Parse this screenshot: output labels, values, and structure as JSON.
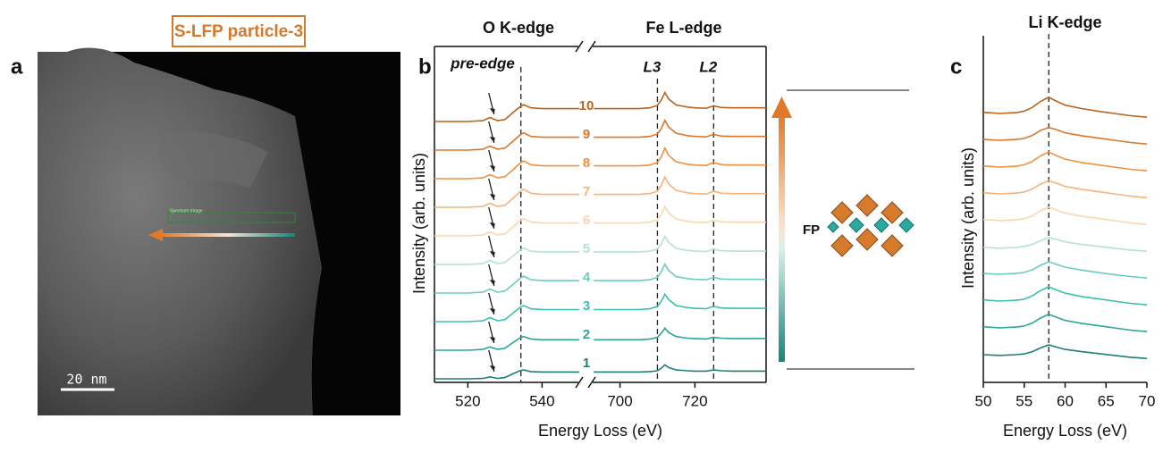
{
  "figure": {
    "particle_title": "S-LFP particle-3",
    "panel_labels": [
      "a",
      "b",
      "c"
    ],
    "scale_bar": "20 nm",
    "roi_label": "Spectrum Image",
    "structure_label": "FP"
  },
  "chart_data": [
    {
      "type": "line",
      "headers": [
        "O K-edge",
        "Fe L-edge"
      ],
      "x_label": "Energy Loss (eV)",
      "y_label": "Intensity (arb. units)",
      "xlim": [
        [
          511,
          550.5
        ],
        [
          692,
          739
        ]
      ],
      "xticks": [
        520,
        540,
        700,
        720
      ],
      "markers": [
        {
          "x": 534.3
        },
        {
          "x": 710,
          "label": "L3"
        },
        {
          "x": 725,
          "label": "L2"
        }
      ],
      "pre_edge_label": "pre-edge",
      "x": [
        511,
        520,
        524,
        526,
        528,
        530,
        532,
        534,
        535,
        537,
        540,
        545,
        550,
        693,
        700,
        705,
        708,
        710,
        711,
        712,
        713,
        715,
        718,
        720,
        723,
        725,
        727,
        730,
        735,
        739
      ],
      "series": [
        {
          "name": "1",
          "color": "#1f7f74",
          "values": [
            0,
            0,
            0.01,
            0.05,
            0.01,
            0.03,
            0.12,
            0.2,
            0.22,
            0.18,
            0.17,
            0.17,
            0.17,
            0.17,
            0.17,
            0.17,
            0.18,
            0.2,
            0.26,
            0.35,
            0.28,
            0.22,
            0.2,
            0.19,
            0.19,
            0.22,
            0.2,
            0.19,
            0.19,
            0.19
          ]
        },
        {
          "name": "2",
          "color": "#2aa597",
          "values": [
            0,
            0,
            0.02,
            0.08,
            0.02,
            0.05,
            0.18,
            0.3,
            0.34,
            0.28,
            0.26,
            0.26,
            0.26,
            0.26,
            0.26,
            0.26,
            0.28,
            0.32,
            0.42,
            0.55,
            0.44,
            0.34,
            0.3,
            0.29,
            0.28,
            0.32,
            0.3,
            0.29,
            0.29,
            0.29
          ]
        },
        {
          "name": "3",
          "color": "#3bbfb0",
          "values": [
            0,
            0,
            0.02,
            0.1,
            0.02,
            0.05,
            0.2,
            0.35,
            0.4,
            0.32,
            0.3,
            0.3,
            0.3,
            0.3,
            0.3,
            0.3,
            0.32,
            0.38,
            0.5,
            0.68,
            0.55,
            0.4,
            0.35,
            0.33,
            0.32,
            0.38,
            0.34,
            0.33,
            0.33,
            0.33
          ]
        },
        {
          "name": "4",
          "color": "#6cccc0",
          "values": [
            0,
            0,
            0.02,
            0.1,
            0.02,
            0.05,
            0.2,
            0.36,
            0.42,
            0.33,
            0.31,
            0.31,
            0.31,
            0.31,
            0.31,
            0.31,
            0.33,
            0.39,
            0.52,
            0.72,
            0.56,
            0.41,
            0.36,
            0.34,
            0.33,
            0.39,
            0.35,
            0.34,
            0.34,
            0.34
          ]
        },
        {
          "name": "5",
          "color": "#b4e1d8",
          "values": [
            0,
            0,
            0.02,
            0.1,
            0.02,
            0.05,
            0.2,
            0.35,
            0.41,
            0.33,
            0.31,
            0.31,
            0.31,
            0.31,
            0.31,
            0.31,
            0.33,
            0.38,
            0.5,
            0.7,
            0.55,
            0.4,
            0.35,
            0.33,
            0.32,
            0.38,
            0.34,
            0.33,
            0.33,
            0.33
          ]
        },
        {
          "name": "6",
          "color": "#f8d6b0",
          "values": [
            0,
            0,
            0.02,
            0.1,
            0.02,
            0.05,
            0.21,
            0.37,
            0.43,
            0.34,
            0.32,
            0.32,
            0.32,
            0.32,
            0.32,
            0.32,
            0.34,
            0.4,
            0.53,
            0.73,
            0.57,
            0.42,
            0.36,
            0.34,
            0.33,
            0.39,
            0.35,
            0.34,
            0.34,
            0.34
          ]
        },
        {
          "name": "7",
          "color": "#f5b27a",
          "values": [
            0,
            0,
            0.02,
            0.1,
            0.02,
            0.05,
            0.21,
            0.38,
            0.45,
            0.35,
            0.32,
            0.32,
            0.32,
            0.32,
            0.32,
            0.32,
            0.34,
            0.4,
            0.54,
            0.75,
            0.58,
            0.42,
            0.36,
            0.34,
            0.33,
            0.4,
            0.35,
            0.34,
            0.34,
            0.34
          ]
        },
        {
          "name": "8",
          "color": "#ee9140",
          "values": [
            0,
            0,
            0.02,
            0.1,
            0.02,
            0.05,
            0.21,
            0.38,
            0.44,
            0.35,
            0.32,
            0.32,
            0.32,
            0.32,
            0.32,
            0.32,
            0.34,
            0.4,
            0.54,
            0.76,
            0.58,
            0.42,
            0.36,
            0.34,
            0.33,
            0.4,
            0.35,
            0.34,
            0.34,
            0.34
          ]
        },
        {
          "name": "9",
          "color": "#d9772a",
          "values": [
            0,
            0,
            0.02,
            0.1,
            0.02,
            0.05,
            0.21,
            0.37,
            0.43,
            0.34,
            0.32,
            0.32,
            0.32,
            0.32,
            0.32,
            0.32,
            0.34,
            0.4,
            0.53,
            0.74,
            0.57,
            0.42,
            0.36,
            0.34,
            0.33,
            0.39,
            0.35,
            0.34,
            0.34,
            0.34
          ]
        },
        {
          "name": "10",
          "color": "#b9631e",
          "values": [
            0,
            0,
            0.02,
            0.1,
            0.02,
            0.05,
            0.21,
            0.36,
            0.42,
            0.34,
            0.32,
            0.32,
            0.32,
            0.32,
            0.32,
            0.32,
            0.34,
            0.4,
            0.53,
            0.72,
            0.56,
            0.41,
            0.36,
            0.34,
            0.33,
            0.39,
            0.35,
            0.34,
            0.34,
            0.34
          ]
        }
      ]
    },
    {
      "type": "line",
      "title": "Li K-edge",
      "x_label": "Energy Loss (eV)",
      "y_label": "Intensity (arb. units)",
      "xlim": [
        50,
        70
      ],
      "xticks": [
        50,
        55,
        60,
        65,
        70
      ],
      "markers": [
        {
          "x": 58
        }
      ],
      "x": [
        50,
        52,
        54,
        55,
        56,
        57,
        58,
        59,
        60,
        62,
        64,
        66,
        68,
        70
      ],
      "series": [
        {
          "color": "#1f7f74",
          "values": [
            0.12,
            0.1,
            0.12,
            0.14,
            0.2,
            0.3,
            0.38,
            0.32,
            0.26,
            0.2,
            0.15,
            0.1,
            0.05,
            0.02
          ]
        },
        {
          "color": "#2aa597",
          "values": [
            0.15,
            0.12,
            0.14,
            0.17,
            0.25,
            0.38,
            0.48,
            0.4,
            0.32,
            0.24,
            0.18,
            0.12,
            0.06,
            0.02
          ]
        },
        {
          "color": "#3bbfb0",
          "values": [
            0.15,
            0.12,
            0.14,
            0.17,
            0.26,
            0.4,
            0.5,
            0.41,
            0.33,
            0.24,
            0.18,
            0.12,
            0.06,
            0.02
          ]
        },
        {
          "color": "#6cccc0",
          "values": [
            0.14,
            0.12,
            0.14,
            0.17,
            0.24,
            0.36,
            0.45,
            0.38,
            0.31,
            0.23,
            0.17,
            0.11,
            0.06,
            0.02
          ]
        },
        {
          "color": "#b4e1d8",
          "values": [
            0.12,
            0.1,
            0.12,
            0.15,
            0.2,
            0.3,
            0.38,
            0.33,
            0.27,
            0.2,
            0.15,
            0.1,
            0.05,
            0.02
          ]
        },
        {
          "color": "#f8d6b0",
          "values": [
            0.15,
            0.12,
            0.14,
            0.17,
            0.25,
            0.38,
            0.48,
            0.4,
            0.32,
            0.24,
            0.18,
            0.12,
            0.06,
            0.02
          ]
        },
        {
          "color": "#f5b27a",
          "values": [
            0.15,
            0.12,
            0.14,
            0.17,
            0.25,
            0.38,
            0.47,
            0.4,
            0.32,
            0.24,
            0.18,
            0.12,
            0.06,
            0.02
          ]
        },
        {
          "color": "#ee9140",
          "values": [
            0.15,
            0.12,
            0.14,
            0.18,
            0.27,
            0.42,
            0.52,
            0.42,
            0.33,
            0.24,
            0.18,
            0.12,
            0.06,
            0.02
          ]
        },
        {
          "color": "#d9772a",
          "values": [
            0.14,
            0.12,
            0.14,
            0.17,
            0.25,
            0.38,
            0.46,
            0.4,
            0.32,
            0.24,
            0.18,
            0.12,
            0.06,
            0.02
          ]
        },
        {
          "color": "#b9631e",
          "values": [
            0.15,
            0.12,
            0.14,
            0.18,
            0.28,
            0.44,
            0.55,
            0.44,
            0.34,
            0.25,
            0.18,
            0.12,
            0.06,
            0.02
          ]
        }
      ]
    }
  ]
}
